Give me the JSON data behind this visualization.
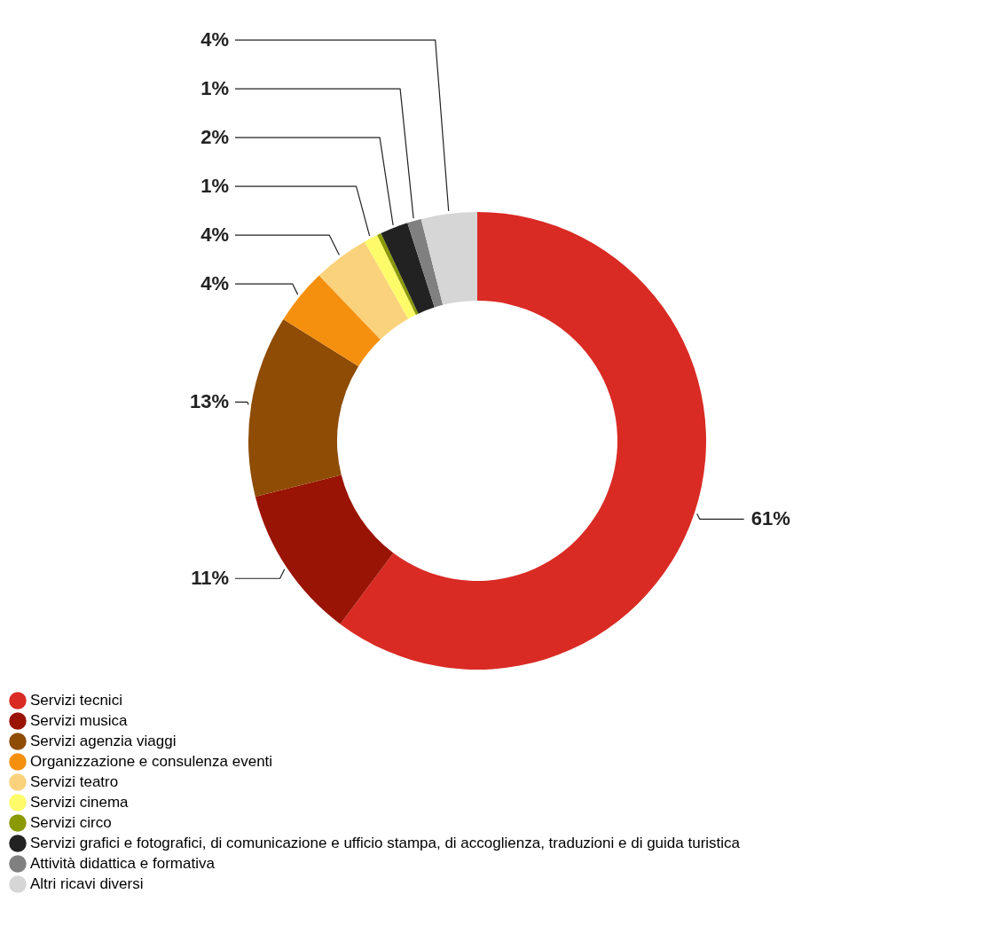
{
  "chart_data": {
    "type": "donut",
    "categories": [
      "Servizi tecnici",
      "Servizi musica",
      "Servizi agenzia viaggi",
      "Organizzazione e consulenza eventi",
      "Servizi teatro",
      "Servizi cinema",
      "Servizi circo",
      "Servizi grafici e fotografici, di comunicazione e ufficio stampa, di accoglienza, traduzioni e di guida turistica",
      "Attività didattica e formativa",
      "Altri ricavi diversi"
    ],
    "values": [
      61,
      11,
      13,
      4,
      4,
      1,
      0.3,
      2,
      1,
      4
    ],
    "value_labels": [
      "61%",
      "11%",
      "13%",
      "4%",
      "4%",
      "1%",
      null,
      "2%",
      "1%",
      "4%"
    ],
    "colors": [
      "#d92b24",
      "#9a1405",
      "#8e4c05",
      "#f5900f",
      "#fbd27c",
      "#fdfb6a",
      "#8a9a05",
      "#222222",
      "#808080",
      "#d6d6d6"
    ],
    "legend": "bottom left"
  }
}
